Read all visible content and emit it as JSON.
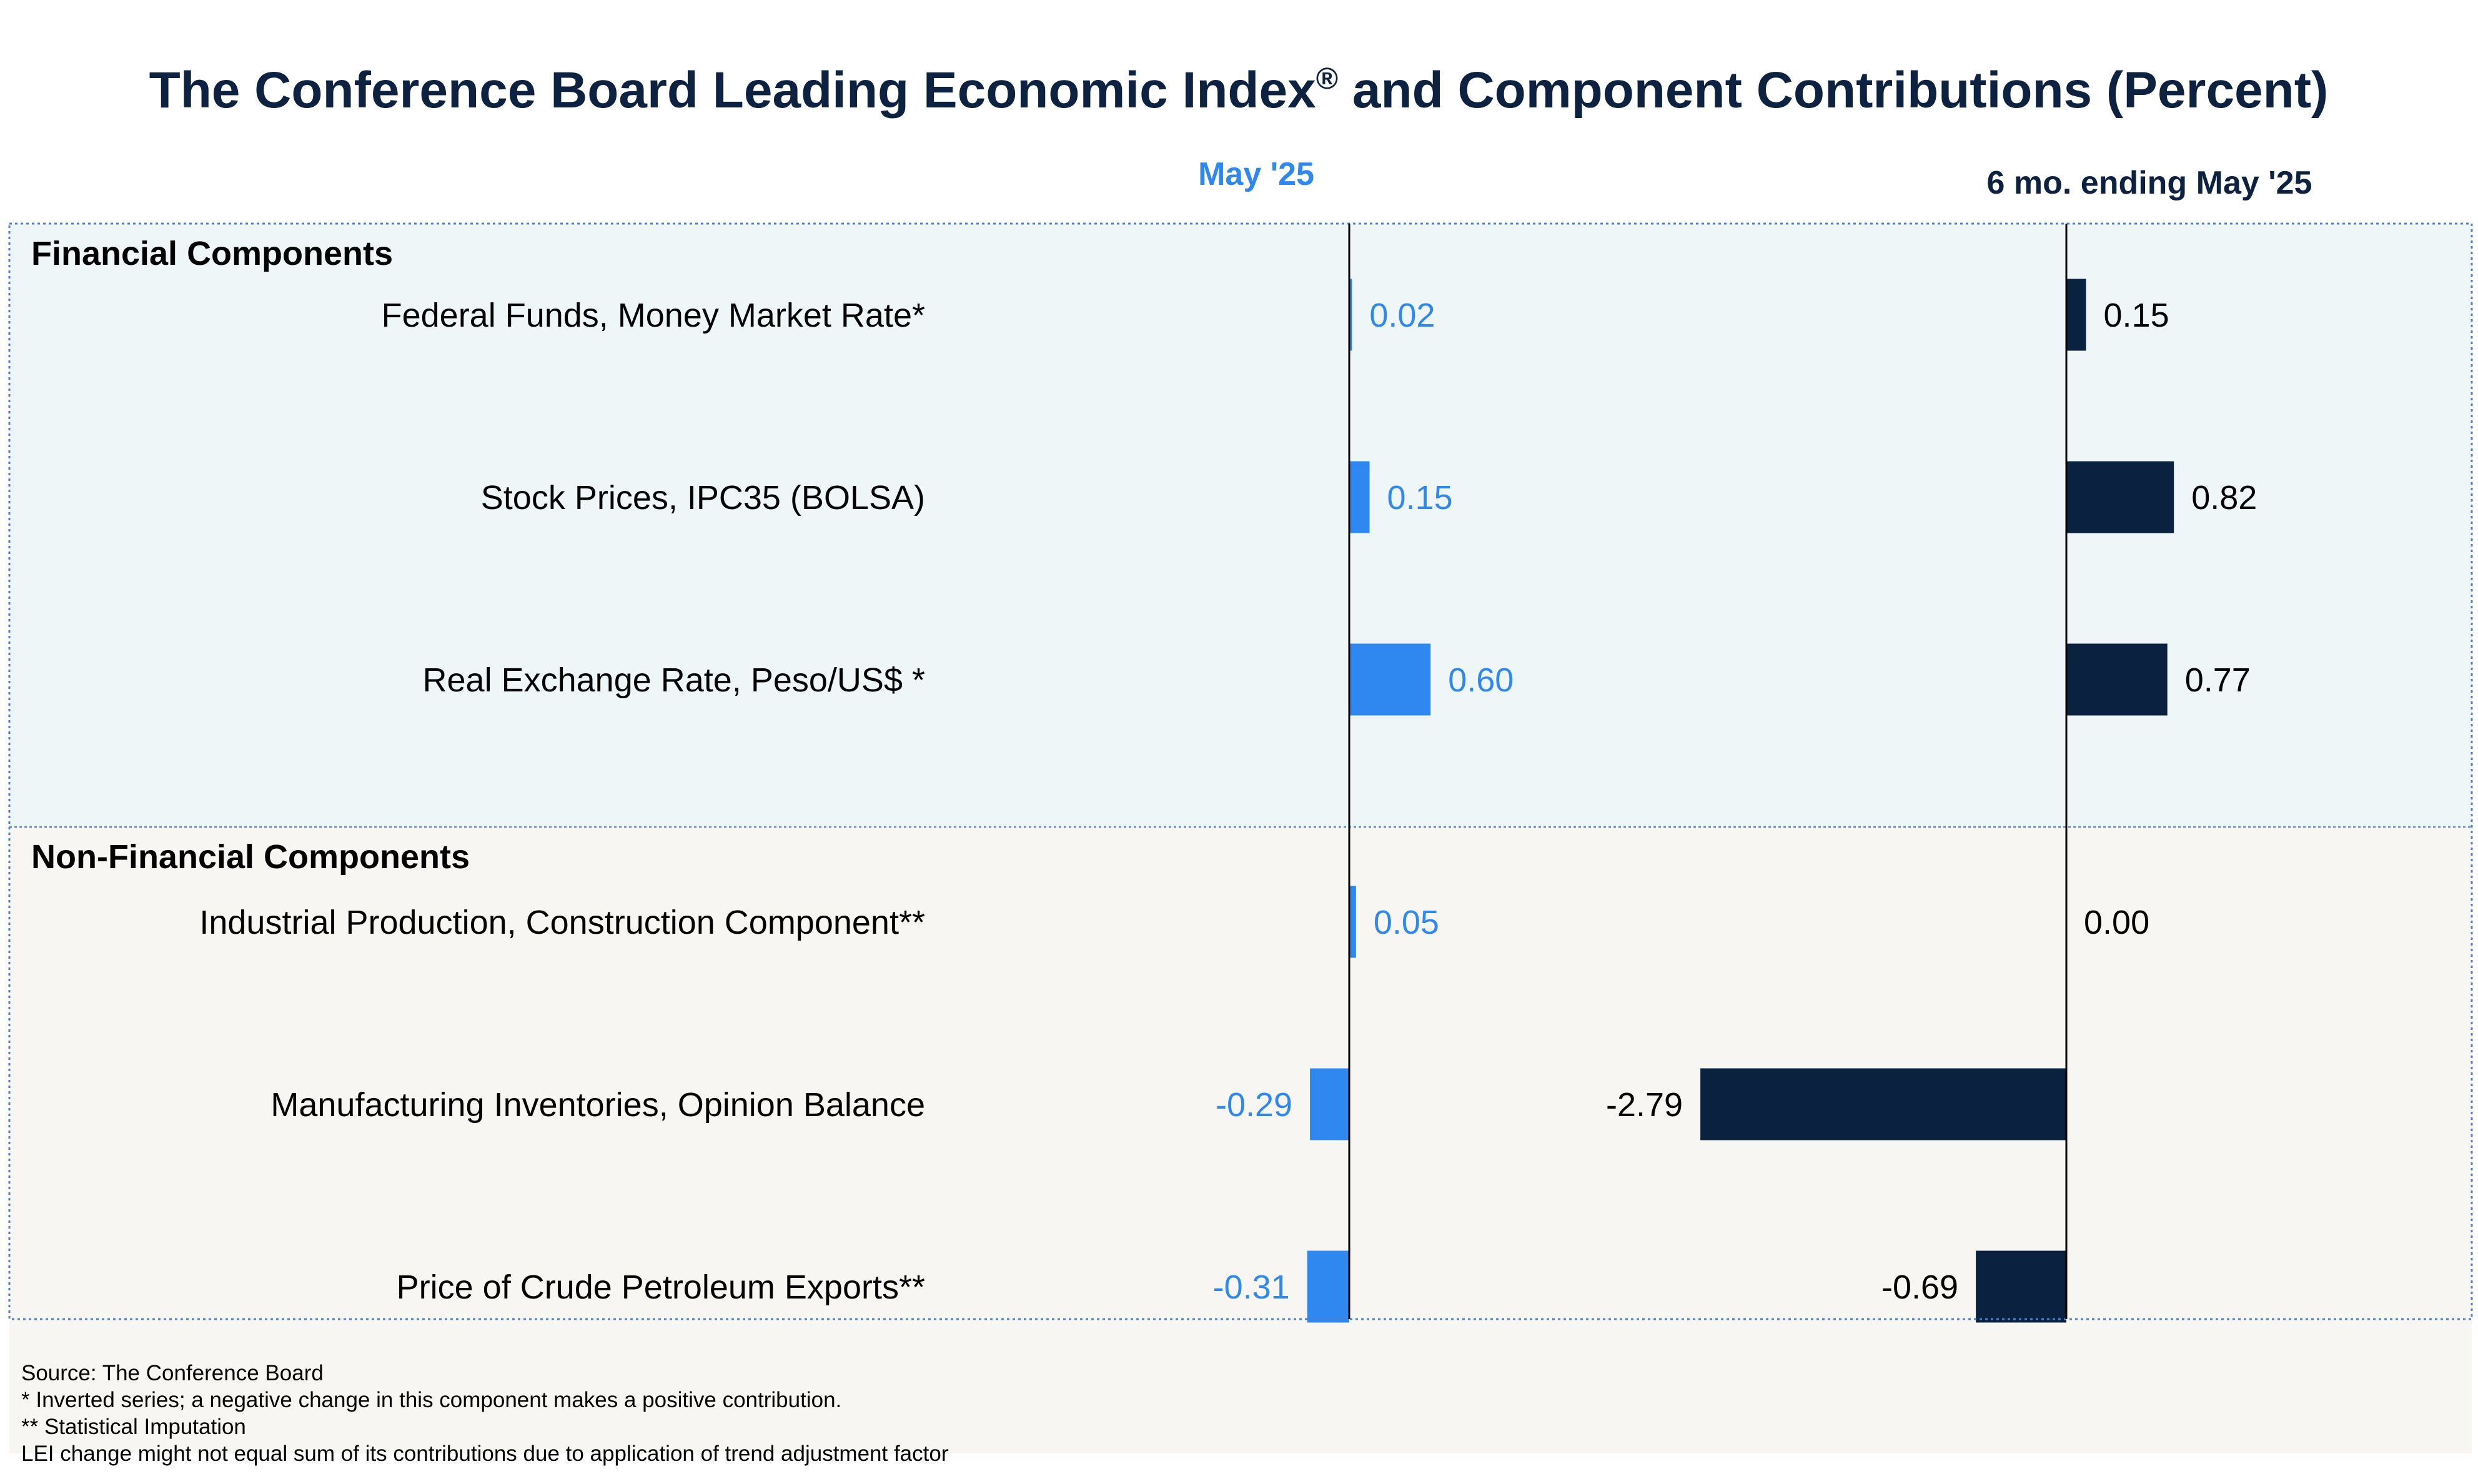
{
  "chart_data": {
    "type": "bar",
    "orientation": "horizontal",
    "title": "The Conference Board Leading Economic Index",
    "title_superscript": "®",
    "title_suffix": " and Component Contributions (Percent)",
    "columns": [
      {
        "key": "may25",
        "header": "May '25",
        "color": "#2f88f0"
      },
      {
        "key": "sixmo",
        "header": "6 mo. ending May '25",
        "color": "#0a2240"
      }
    ],
    "groups": [
      {
        "label": "Financial Components",
        "background": "#eef6f8",
        "rows": [
          {
            "label": "Federal Funds, Money Market Rate*",
            "may25": 0.02,
            "may25_text": "0.02",
            "sixmo": 0.15,
            "sixmo_text": "0.15"
          },
          {
            "label": "Stock Prices, IPC35 (BOLSA)",
            "may25": 0.15,
            "may25_text": "0.15",
            "sixmo": 0.82,
            "sixmo_text": "0.82"
          },
          {
            "label": "Real Exchange Rate, Peso/US$ *",
            "may25": 0.6,
            "may25_text": "0.60",
            "sixmo": 0.77,
            "sixmo_text": "0.77"
          }
        ]
      },
      {
        "label": "Non-Financial Components",
        "background": "#f7f6f3",
        "rows": [
          {
            "label": "Industrial Production, Construction Component**",
            "may25": 0.05,
            "may25_text": "0.05",
            "sixmo": 0.0,
            "sixmo_text": "0.00"
          },
          {
            "label": "Manufacturing Inventories, Opinion Balance",
            "may25": -0.29,
            "may25_text": "-0.29",
            "sixmo": -2.79,
            "sixmo_text": "-2.79"
          },
          {
            "label": "Price of Crude Petroleum Exports**",
            "may25": -0.31,
            "may25_text": "-0.31",
            "sixmo": -0.69,
            "sixmo_text": "-0.69"
          }
        ]
      }
    ]
  },
  "footnotes": [
    "Source: The Conference Board",
    "*  Inverted series; a negative change in this component makes a positive contribution.",
    "** Statistical Imputation",
    "LEI change might not equal sum of its contributions due to application of trend adjustment factor"
  ]
}
